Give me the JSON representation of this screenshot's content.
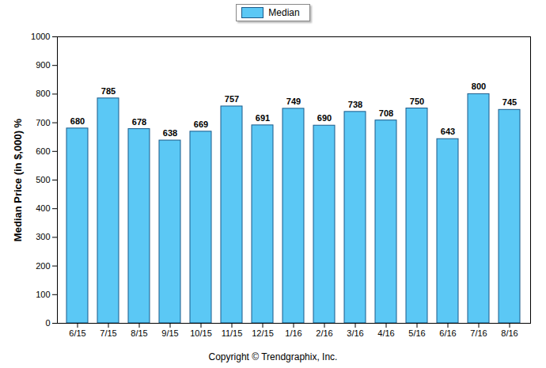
{
  "chart_data": {
    "type": "bar",
    "categories": [
      "6/15",
      "7/15",
      "8/15",
      "9/15",
      "10/15",
      "11/15",
      "12/15",
      "1/16",
      "2/16",
      "3/16",
      "4/16",
      "5/16",
      "6/16",
      "7/16",
      "8/16"
    ],
    "series": [
      {
        "name": "Median",
        "color": "#5bc8f5",
        "values": [
          680,
          785,
          678,
          638,
          669,
          757,
          691,
          749,
          690,
          738,
          708,
          750,
          643,
          800,
          745
        ]
      }
    ],
    "y_label": "Median Price (in $,000) %",
    "caption": "Copyright © Trendgraphix, Inc.",
    "ylim": [
      0,
      1000
    ],
    "yticks": [
      0,
      100,
      200,
      300,
      400,
      500,
      600,
      700,
      800,
      900,
      1000
    ],
    "grid": false,
    "legend": "top",
    "data_labels": true
  }
}
